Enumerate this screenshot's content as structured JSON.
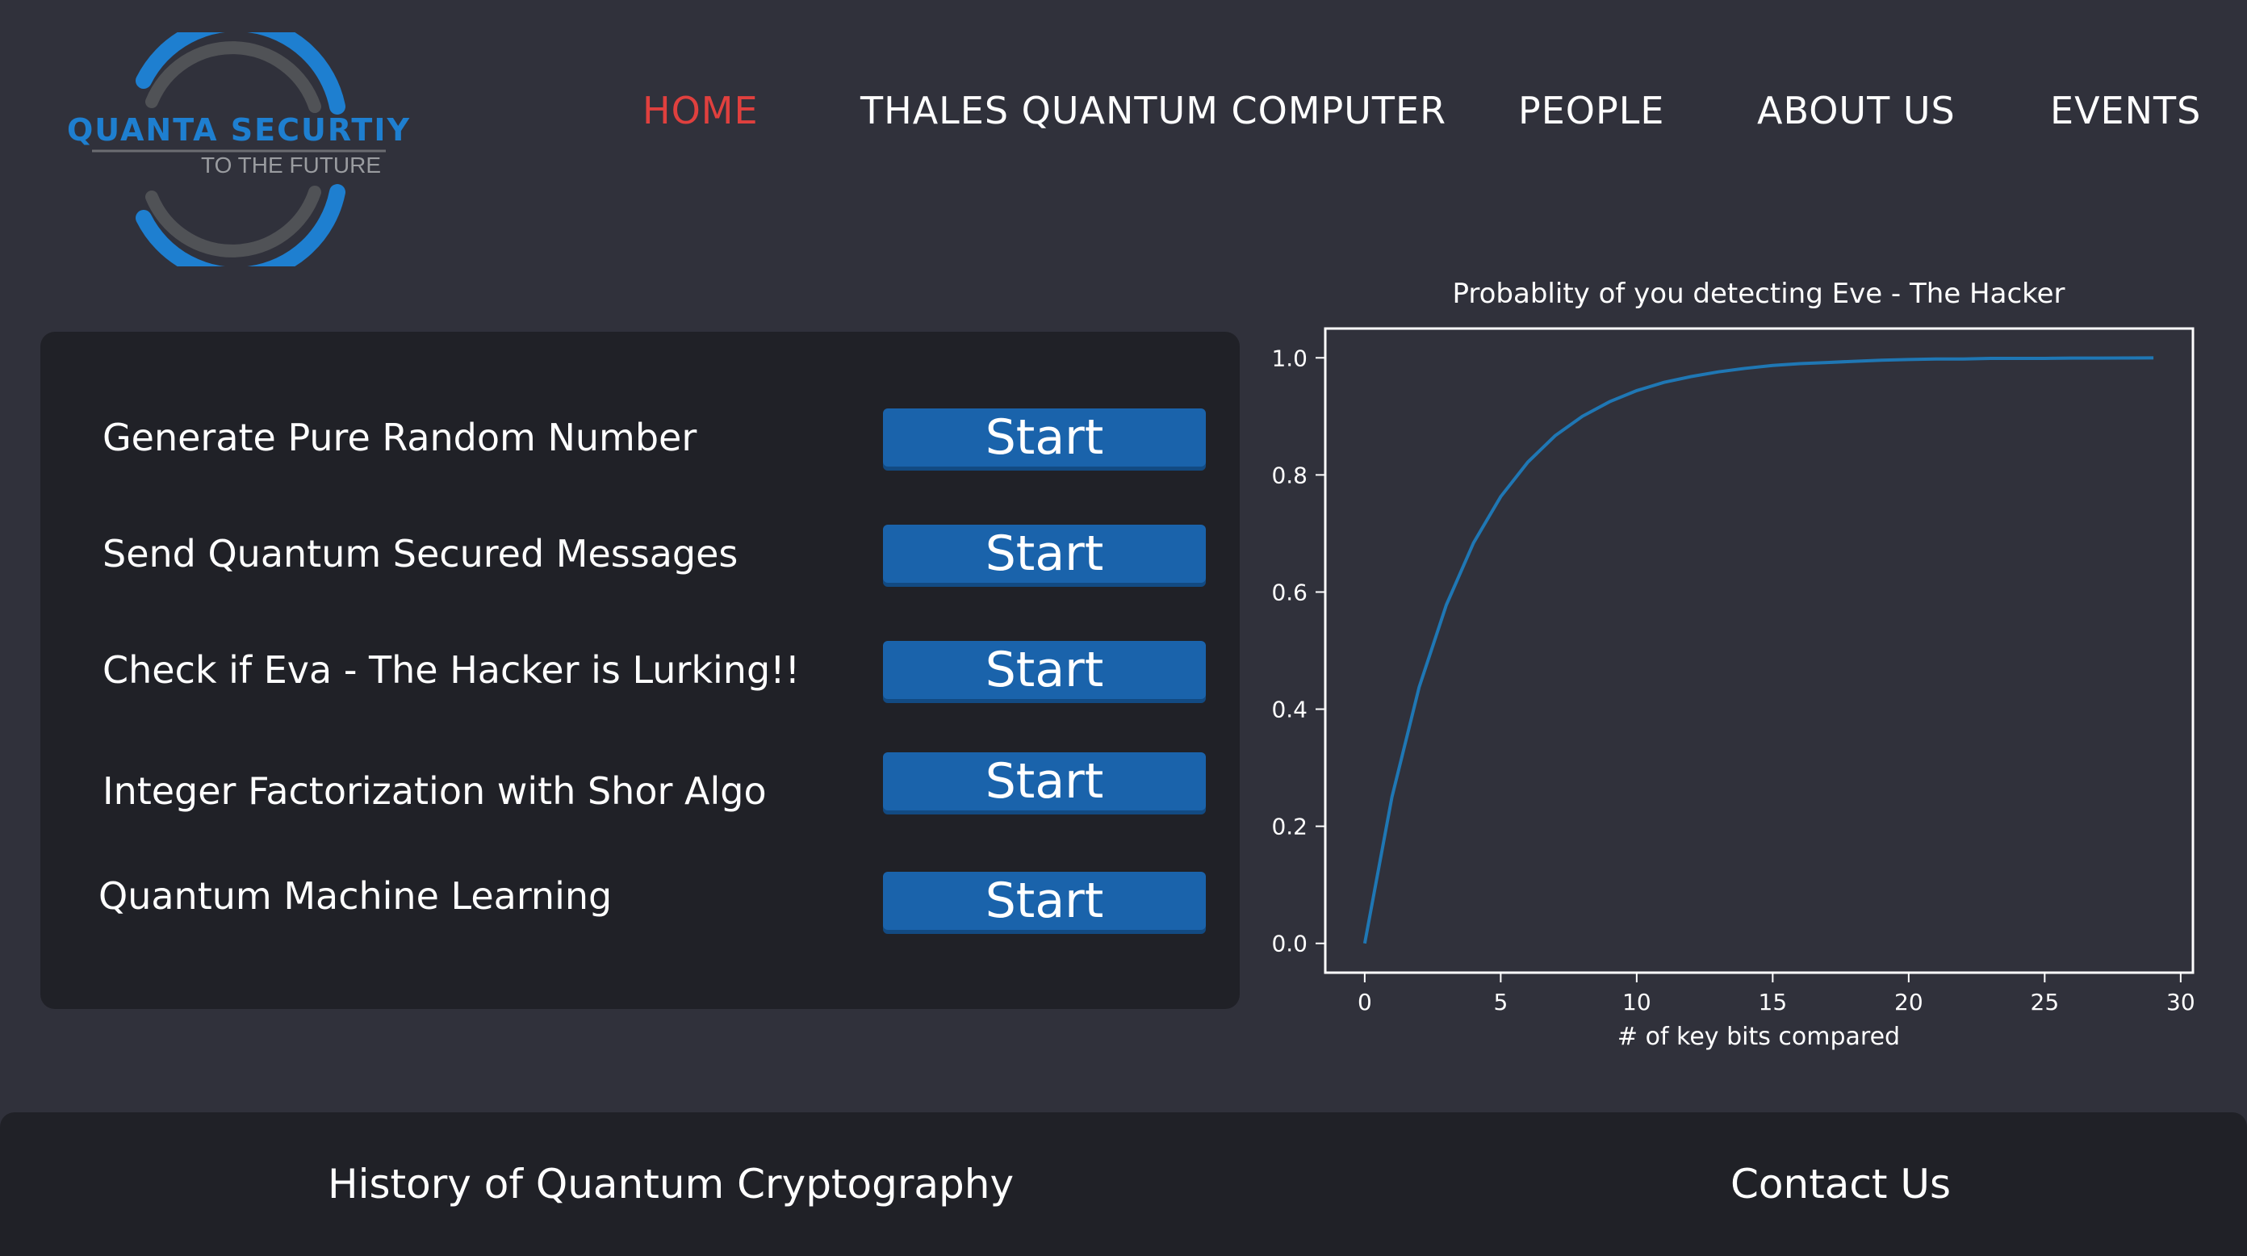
{
  "brand": {
    "name": "QUANTA SECURTIY",
    "tagline": "TO THE FUTURE",
    "colors": {
      "blue": "#1e7fd0",
      "gray": "#505256",
      "accent": "#e0403e"
    }
  },
  "nav": {
    "items": [
      {
        "label": "HOME",
        "active": true
      },
      {
        "label": "THALES QUANTUM COMPUTER",
        "active": false
      },
      {
        "label": "PEOPLE",
        "active": false
      },
      {
        "label": "ABOUT US",
        "active": false
      },
      {
        "label": "EVENTS",
        "active": false
      }
    ]
  },
  "actions": [
    {
      "label": "Generate Pure Random Number",
      "button": "Start"
    },
    {
      "label": "Send Quantum Secured Messages",
      "button": "Start"
    },
    {
      "label": "Check if Eva - The Hacker is Lurking!!",
      "button": "Start"
    },
    {
      "label": "Integer Factorization with Shor Algo",
      "button": "Start"
    },
    {
      "label": "Quantum Machine Learning",
      "button": "Start"
    }
  ],
  "chart_data": {
    "type": "line",
    "title": "Probablity of you detecting Eve - The Hacker",
    "xlabel": "# of key bits compared",
    "ylabel": "",
    "xlim": [
      -1.45,
      30.45
    ],
    "ylim": [
      -0.05,
      1.05
    ],
    "xticks": [
      0,
      5,
      10,
      15,
      20,
      25,
      30
    ],
    "yticks": [
      0.0,
      0.2,
      0.4,
      0.6,
      0.8,
      1.0
    ],
    "ytick_labels": [
      "0.0",
      "0.2",
      "0.4",
      "0.6",
      "0.8",
      "1.0"
    ],
    "grid": false,
    "line_color": "#1f77b4",
    "series": [
      {
        "x": [
          0,
          1,
          2,
          3,
          4,
          5,
          6,
          7,
          8,
          9,
          10,
          11,
          12,
          13,
          14,
          15,
          16,
          17,
          18,
          19,
          20,
          21,
          22,
          23,
          24,
          25,
          26,
          27,
          28,
          29
        ],
        "values": [
          0.0,
          0.25,
          0.4375,
          0.578,
          0.684,
          0.763,
          0.822,
          0.867,
          0.9,
          0.925,
          0.944,
          0.958,
          0.968,
          0.976,
          0.982,
          0.987,
          0.99,
          0.992,
          0.994,
          0.996,
          0.997,
          0.998,
          0.998,
          0.999,
          0.999,
          0.999,
          0.9995,
          0.9996,
          0.9997,
          0.9998
        ]
      }
    ]
  },
  "footer": {
    "history": "History of Quantum Cryptography",
    "contact": "Contact Us"
  }
}
